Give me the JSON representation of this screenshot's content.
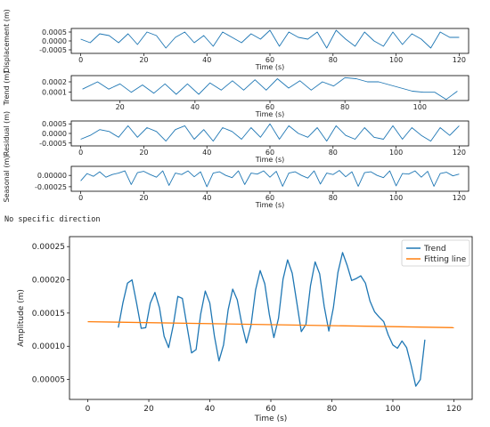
{
  "note": "No specific direction",
  "colors": {
    "trend": "#1f77b4",
    "fitting": "#ff7f0e",
    "axis": "#000000"
  },
  "chart_data": [
    {
      "type": "line",
      "name": "displacement",
      "ylabel": "Displacement (m)",
      "xlabel": "Time (s)",
      "xlim": [
        -3,
        123
      ],
      "ylim": [
        -0.0007,
        0.0007
      ],
      "xticks": [
        0,
        20,
        40,
        60,
        80,
        100,
        120
      ],
      "yticks": [
        0.0005,
        0.0,
        -0.0005
      ],
      "ytick_labels": [
        "0.0005",
        "0.0000",
        "-0.0005"
      ],
      "x": [
        0,
        3,
        6,
        9,
        12,
        15,
        18,
        21,
        24,
        27,
        30,
        33,
        36,
        39,
        42,
        45,
        48,
        51,
        54,
        57,
        60,
        63,
        66,
        69,
        72,
        75,
        78,
        81,
        84,
        87,
        90,
        93,
        96,
        99,
        102,
        105,
        108,
        111,
        114,
        117,
        120
      ],
      "values": [
        0.0001,
        -0.0001,
        0.0004,
        0.0003,
        -0.0001,
        0.0004,
        -0.0002,
        0.0005,
        0.0003,
        -0.0004,
        0.0002,
        0.0005,
        -0.0001,
        0.0003,
        -0.0003,
        0.0005,
        0.0002,
        -0.0001,
        0.0004,
        0.0001,
        0.0006,
        -0.0003,
        0.0005,
        0.0002,
        0.0001,
        0.0005,
        -0.0004,
        0.0006,
        0.0001,
        -0.0003,
        0.0005,
        0.0,
        -0.0003,
        0.0005,
        -0.0002,
        0.0004,
        0.0001,
        -0.0004,
        0.0005,
        0.0002,
        0.0002
      ]
    },
    {
      "type": "line",
      "name": "trend",
      "ylabel": "Trend (m)",
      "xlabel": "Time (s)",
      "xlim": [
        7,
        113
      ],
      "ylim": [
        2e-05,
        0.00026
      ],
      "xticks": [
        20,
        40,
        60,
        80,
        100
      ],
      "yticks": [
        0.0002,
        0.0001
      ],
      "ytick_labels": [
        "0.0002",
        "0.0001"
      ],
      "x": [
        10,
        14,
        17,
        20,
        23,
        26,
        29,
        32,
        35,
        38,
        41,
        44,
        47,
        50,
        53,
        56,
        59,
        62,
        65,
        68,
        71,
        74,
        77,
        80,
        83,
        86,
        89,
        92,
        95,
        98,
        101,
        104,
        107,
        110
      ],
      "values": [
        0.00013,
        0.0002,
        0.00013,
        0.00018,
        0.0001,
        0.00017,
        9e-05,
        0.00018,
        8e-05,
        0.00018,
        8e-05,
        0.00019,
        0.00012,
        0.00021,
        0.00012,
        0.00022,
        0.00012,
        0.00023,
        0.00014,
        0.00021,
        0.00012,
        0.0002,
        0.00016,
        0.00024,
        0.00023,
        0.0002,
        0.0002,
        0.00017,
        0.00014,
        0.00011,
        0.0001,
        0.0001,
        3e-05,
        0.00011
      ]
    },
    {
      "type": "line",
      "name": "residual",
      "ylabel": "Residual (m)",
      "xlabel": "Time (s)",
      "xlim": [
        -3,
        123
      ],
      "ylim": [
        -0.00065,
        0.00065
      ],
      "xticks": [
        0,
        20,
        40,
        60,
        80,
        100,
        120
      ],
      "yticks": [
        0.0005,
        0.0,
        -0.0005
      ],
      "ytick_labels": [
        "0.0005",
        "0.0000",
        "-0.0005"
      ],
      "x": [
        0,
        3,
        6,
        9,
        12,
        15,
        18,
        21,
        24,
        27,
        30,
        33,
        36,
        39,
        42,
        45,
        48,
        51,
        54,
        57,
        60,
        63,
        66,
        69,
        72,
        75,
        78,
        81,
        84,
        87,
        90,
        93,
        96,
        99,
        102,
        105,
        108,
        111,
        114,
        117,
        120
      ],
      "values": [
        -0.0003,
        -0.0001,
        0.0002,
        0.0001,
        -0.0002,
        0.0004,
        -0.0002,
        0.0003,
        0.0001,
        -0.0004,
        0.0002,
        0.0004,
        -0.0003,
        0.0002,
        -0.0004,
        0.0003,
        0.0001,
        -0.0003,
        0.0003,
        -0.0002,
        0.0005,
        -0.0003,
        0.0004,
        0.0,
        -0.0002,
        0.0003,
        -0.0004,
        0.0004,
        -0.0001,
        -0.0003,
        0.0003,
        -0.0002,
        -0.0003,
        0.0004,
        -0.0003,
        0.0003,
        -0.0001,
        -0.0004,
        0.0003,
        -0.0001,
        0.0004
      ]
    },
    {
      "type": "line",
      "name": "seasonal",
      "ylabel": "Seasonal (m)",
      "xlabel": "Time (s)",
      "xlim": [
        -3,
        123
      ],
      "ylim": [
        -0.00035,
        0.0002
      ],
      "xticks": [
        0,
        20,
        40,
        60,
        80,
        100,
        120
      ],
      "yticks": [
        0.0,
        -0.00025
      ],
      "ytick_labels": [
        "0.00000",
        "-0.00025"
      ],
      "x": [
        0,
        2,
        4,
        6,
        8,
        10,
        12,
        14,
        16,
        18,
        20,
        22,
        24,
        26,
        28,
        30,
        32,
        34,
        36,
        38,
        40,
        42,
        44,
        46,
        48,
        50,
        52,
        54,
        56,
        58,
        60,
        62,
        64,
        66,
        68,
        70,
        72,
        74,
        76,
        78,
        80,
        82,
        84,
        86,
        88,
        90,
        92,
        94,
        96,
        98,
        100,
        102,
        104,
        106,
        108,
        110,
        112,
        114,
        116,
        118,
        120
      ],
      "values": [
        -0.00012,
        4e-05,
        -2e-05,
        8e-05,
        -4e-05,
        2e-05,
        5e-05,
        0.0001,
        -0.0002,
        6e-05,
        9e-05,
        2e-05,
        -4e-05,
        0.0001,
        -0.00022,
        5e-05,
        2e-05,
        0.0001,
        -3e-05,
        8e-05,
        -0.00025,
        5e-05,
        8e-05,
        0.0,
        -5e-05,
        0.0001,
        -0.0002,
        5e-05,
        3e-05,
        0.0001,
        -4e-05,
        9e-05,
        -0.00024,
        5e-05,
        8e-05,
        0.0,
        -6e-05,
        0.0001,
        -0.00019,
        5e-05,
        2e-05,
        0.00011,
        -3e-05,
        8e-05,
        -0.00024,
        6e-05,
        8e-05,
        0.0,
        -5e-05,
        0.0001,
        -0.00023,
        4e-05,
        3e-05,
        0.0001,
        -4e-05,
        9e-05,
        -0.00024,
        4e-05,
        7e-05,
        -1e-05,
        3e-05
      ]
    },
    {
      "type": "line",
      "name": "trend-fit",
      "ylabel": "Amplitude (m)",
      "xlabel": "Time (s)",
      "xlim": [
        -6,
        126
      ],
      "ylim": [
        2e-05,
        0.000265
      ],
      "xticks": [
        0,
        20,
        40,
        60,
        80,
        100,
        120
      ],
      "yticks": [
        5e-05,
        0.0001,
        0.00015,
        0.0002,
        0.00025
      ],
      "ytick_labels": [
        "0.00005",
        "0.00010",
        "0.00015",
        "0.00020",
        "0.00025"
      ],
      "legend": {
        "position": "top-right",
        "entries": [
          "Trend",
          "Fitting line"
        ]
      },
      "series": [
        {
          "name": "Trend",
          "x": [
            10,
            11.5,
            13,
            14.5,
            16,
            17.5,
            19,
            20.5,
            22,
            23.5,
            25,
            26.5,
            28,
            29.5,
            31,
            32.5,
            34,
            35.5,
            37,
            38.5,
            40,
            41.5,
            43,
            44.5,
            46,
            47.5,
            49,
            50.5,
            52,
            53.5,
            55,
            56.5,
            58,
            59.5,
            61,
            62.5,
            64,
            65.5,
            67,
            68.5,
            70,
            71.5,
            73,
            74.5,
            76,
            77.5,
            79,
            80.5,
            82,
            83.5,
            85,
            86.5,
            88,
            89.5,
            91,
            92.5,
            94,
            95.5,
            97,
            98.5,
            100,
            101.5,
            103,
            104.5,
            106,
            107.5,
            109,
            110.5
          ],
          "values": [
            0.000128,
            0.000165,
            0.000195,
            0.0002,
            0.000165,
            0.000127,
            0.000128,
            0.000165,
            0.000181,
            0.000158,
            0.000115,
            9.8e-05,
            0.000131,
            0.000175,
            0.000172,
            0.000131,
            9e-05,
            9.5e-05,
            0.000148,
            0.000183,
            0.000165,
            0.000115,
            7.8e-05,
            0.000102,
            0.000155,
            0.000186,
            0.00017,
            0.000133,
            0.000105,
            0.000131,
            0.000185,
            0.000214,
            0.000194,
            0.000148,
            0.000113,
            0.000142,
            0.000201,
            0.00023,
            0.00021,
            0.000166,
            0.000122,
            0.000133,
            0.000191,
            0.000227,
            0.000209,
            0.00016,
            0.000123,
            0.000158,
            0.000211,
            0.000241,
            0.000222,
            0.000199,
            0.000202,
            0.000206,
            0.000195,
            0.000168,
            0.000152,
            0.000144,
            0.000137,
            0.000117,
            0.000102,
            9.7e-05,
            0.000108,
            9.8e-05,
            7.1e-05,
            4e-05,
            5e-05,
            0.00011
          ]
        },
        {
          "name": "Fitting line",
          "x": [
            0,
            120
          ],
          "values": [
            0.000137,
            0.000128
          ]
        }
      ]
    }
  ]
}
